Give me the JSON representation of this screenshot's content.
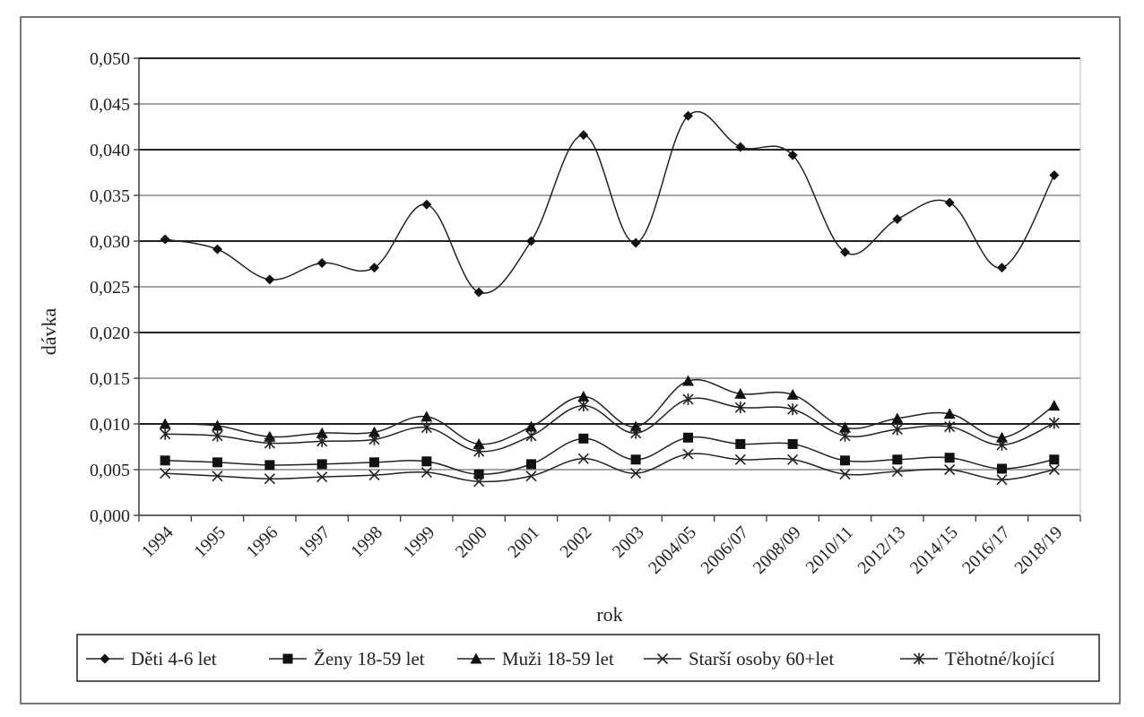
{
  "chart_data": {
    "type": "line",
    "xlabel": "rok",
    "ylabel": "dávka",
    "ylim": [
      0,
      0.05
    ],
    "ytick_step": 0.005,
    "ytick_labels": [
      "0,000",
      "0,005",
      "0,010",
      "0,015",
      "0,020",
      "0,025",
      "0,030",
      "0,035",
      "0,040",
      "0,045",
      "0,050"
    ],
    "grid": true,
    "legend_position": "bottom",
    "categories": [
      "1994",
      "1995",
      "1996",
      "1997",
      "1998",
      "1999",
      "2000",
      "2001",
      "2002",
      "2003",
      "2004/05",
      "2006/07",
      "2008/09",
      "2010/11",
      "2012/13",
      "2014/15",
      "2016/17",
      "2018/19"
    ],
    "series": [
      {
        "name": "Děti 4-6 let",
        "marker": "diamond",
        "values": [
          0.0302,
          0.0291,
          0.0258,
          0.0276,
          0.0271,
          0.034,
          0.0244,
          0.03,
          0.0416,
          0.0298,
          0.0437,
          0.0403,
          0.0394,
          0.0288,
          0.0324,
          0.0342,
          0.0271,
          0.0372
        ]
      },
      {
        "name": "Ženy 18-59 let",
        "marker": "square",
        "values": [
          0.006,
          0.0058,
          0.0055,
          0.0056,
          0.0058,
          0.0059,
          0.0045,
          0.0056,
          0.0084,
          0.0061,
          0.0085,
          0.0078,
          0.0078,
          0.006,
          0.0061,
          0.0063,
          0.0051,
          0.0061
        ]
      },
      {
        "name": "Muži 18-59 let",
        "marker": "triangle",
        "values": [
          0.01,
          0.0098,
          0.0086,
          0.009,
          0.0091,
          0.0108,
          0.0078,
          0.0097,
          0.013,
          0.0097,
          0.0147,
          0.0133,
          0.0132,
          0.0096,
          0.0106,
          0.0111,
          0.0085,
          0.012
        ]
      },
      {
        "name": "Starší osoby 60+let",
        "marker": "x",
        "values": [
          0.0046,
          0.0043,
          0.004,
          0.0042,
          0.0044,
          0.0047,
          0.0037,
          0.0043,
          0.0062,
          0.0046,
          0.0067,
          0.0061,
          0.0061,
          0.0045,
          0.0048,
          0.005,
          0.0039,
          0.005
        ]
      },
      {
        "name": "Těhotné/kojící",
        "marker": "star",
        "values": [
          0.0089,
          0.0087,
          0.0079,
          0.0081,
          0.0083,
          0.0096,
          0.007,
          0.0087,
          0.012,
          0.009,
          0.0127,
          0.0118,
          0.0116,
          0.0087,
          0.0094,
          0.0097,
          0.0077,
          0.0101
        ]
      }
    ]
  }
}
